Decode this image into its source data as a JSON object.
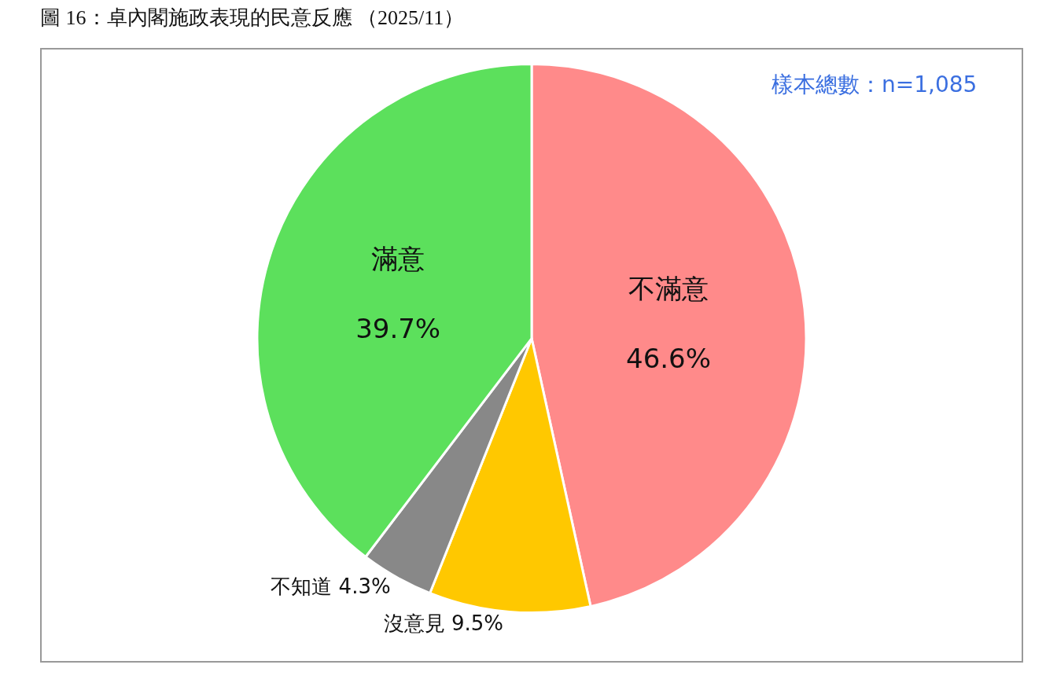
{
  "chart_data": {
    "type": "pie",
    "title": "圖 16：卓內閣施政表現的民意反應 （2025/11）",
    "annotations": [
      "樣本總數：n=1,085"
    ],
    "categories": [
      "不滿意",
      "沒意見",
      "不知道",
      "滿意"
    ],
    "values": [
      46.6,
      9.5,
      4.3,
      39.7
    ],
    "value_labels": [
      "46.6%",
      "9.5%",
      "4.3%",
      "39.7%"
    ],
    "colors": [
      "#ff8a8a",
      "#ffc800",
      "#888888",
      "#5ce05c"
    ],
    "legend": false
  }
}
